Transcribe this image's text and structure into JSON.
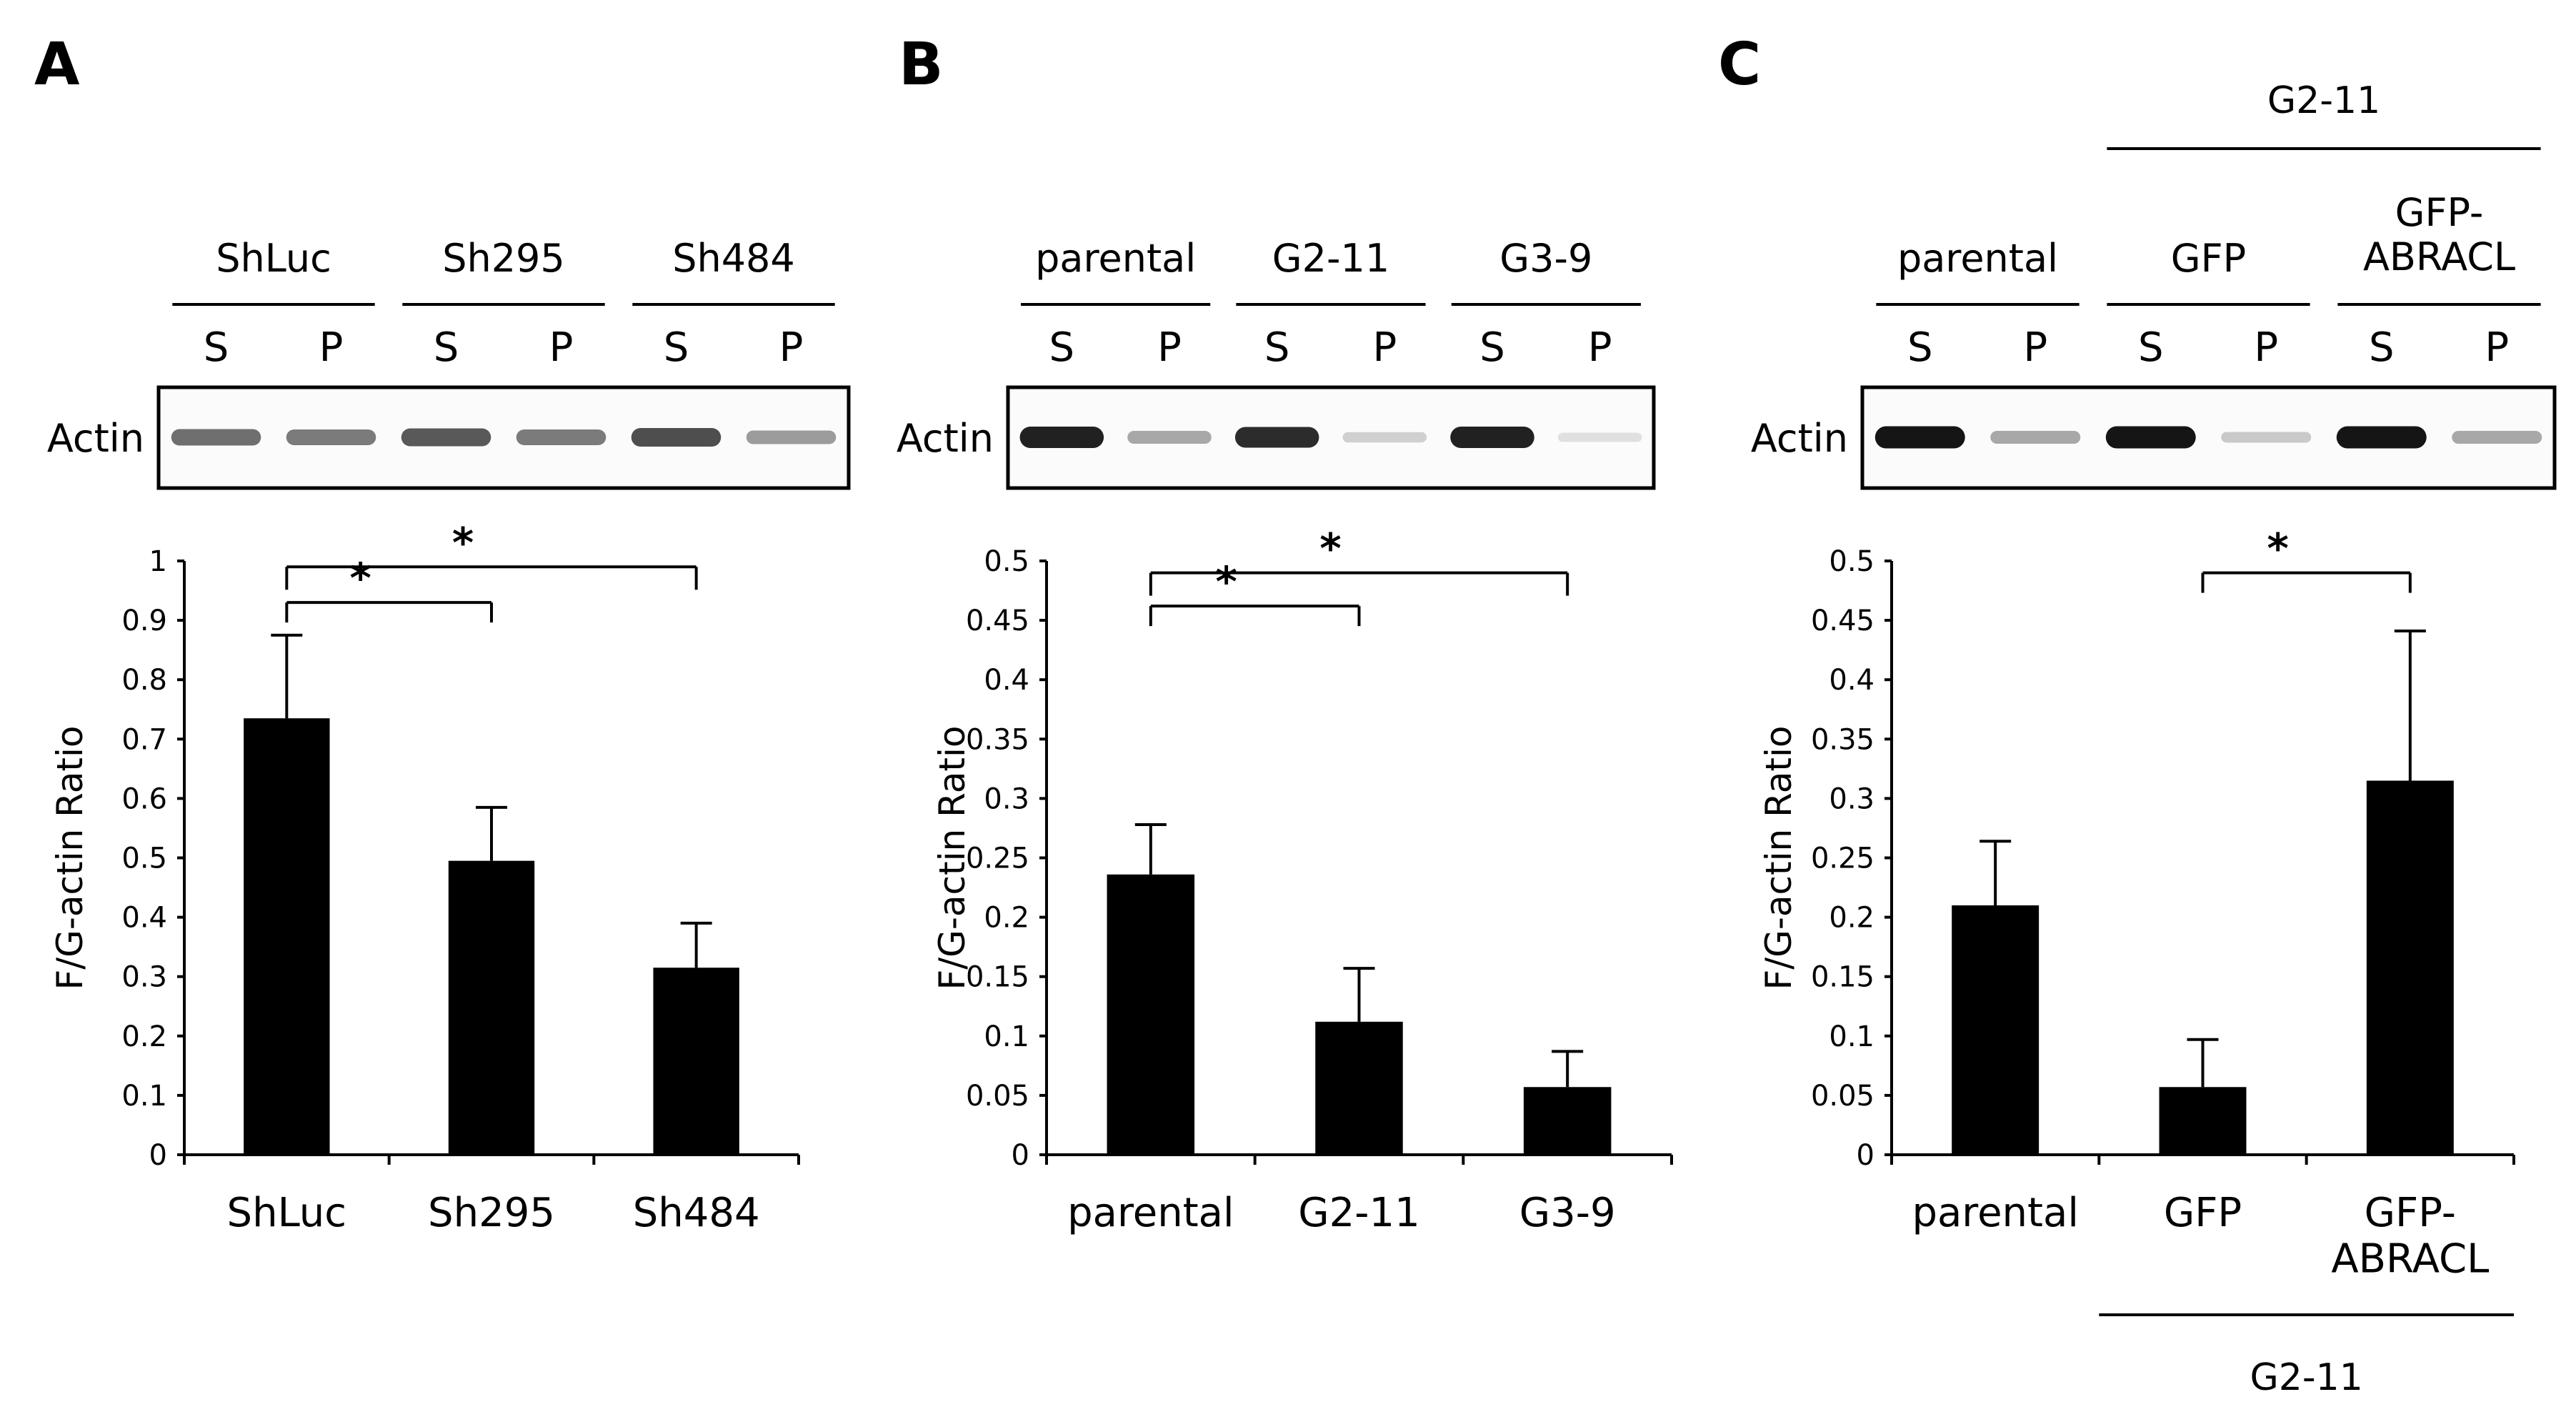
{
  "panels": [
    {
      "letter": "A",
      "top_group_label": "",
      "top_group_span": null,
      "blot_groups": [
        "ShLuc",
        "Sh295",
        "Sh484"
      ],
      "lane_labels": [
        "S",
        "P",
        "S",
        "P",
        "S",
        "P"
      ],
      "blot_row_label": "Actin",
      "band_intensity": [
        0.55,
        0.5,
        0.65,
        0.5,
        0.7,
        0.35
      ],
      "bottom_group_label": "",
      "bottom_group_span": null
    },
    {
      "letter": "B",
      "top_group_label": "",
      "top_group_span": null,
      "blot_groups": [
        "parental",
        "G2-11",
        "G3-9"
      ],
      "lane_labels": [
        "S",
        "P",
        "S",
        "P",
        "S",
        "P"
      ],
      "blot_row_label": "Actin",
      "band_intensity": [
        0.9,
        0.3,
        0.85,
        0.12,
        0.9,
        0.05
      ],
      "bottom_group_label": "",
      "bottom_group_span": null
    },
    {
      "letter": "C",
      "top_group_label": "G2-11",
      "top_group_span": [
        1,
        2
      ],
      "blot_groups": [
        "parental",
        "GFP",
        "GFP-\nABRACL"
      ],
      "lane_labels": [
        "S",
        "P",
        "S",
        "P",
        "S",
        "P"
      ],
      "blot_row_label": "Actin",
      "band_intensity": [
        0.95,
        0.3,
        0.95,
        0.15,
        0.95,
        0.3
      ],
      "bottom_group_label": "G2-11",
      "bottom_group_span": [
        1,
        2
      ]
    }
  ],
  "chart_data": [
    {
      "type": "bar",
      "categories": [
        "ShLuc",
        "Sh295",
        "Sh484"
      ],
      "values": [
        0.735,
        0.495,
        0.315
      ],
      "errors": [
        0.14,
        0.09,
        0.075
      ],
      "ylabel": "F/G-actin Ratio",
      "ylim": [
        0,
        1
      ],
      "yticks": [
        0,
        0.1,
        0.2,
        0.3,
        0.4,
        0.5,
        0.6,
        0.7,
        0.8,
        0.9,
        1
      ],
      "ytick_labels": [
        "0",
        "0.1",
        "0.2",
        "0.3",
        "0.4",
        "0.5",
        "0.6",
        "0.7",
        "0.8",
        "0.9",
        "1"
      ],
      "grid": false,
      "color": "#000000",
      "significance": [
        {
          "from": 0,
          "to": 1,
          "y": 0.93,
          "label": "*"
        },
        {
          "from": 0,
          "to": 2,
          "y": 0.99,
          "label": "*"
        }
      ]
    },
    {
      "type": "bar",
      "categories": [
        "parental",
        "G2-11",
        "G3-9"
      ],
      "values": [
        0.236,
        0.112,
        0.057
      ],
      "errors": [
        0.042,
        0.045,
        0.03
      ],
      "ylabel": "F/G-actin Ratio",
      "ylim": [
        0,
        0.5
      ],
      "yticks": [
        0,
        0.05,
        0.1,
        0.15,
        0.2,
        0.25,
        0.3,
        0.35,
        0.4,
        0.45,
        0.5
      ],
      "ytick_labels": [
        "0",
        "0.05",
        "0.1",
        "0.15",
        "0.2",
        "0.25",
        "0.3",
        "0.35",
        "0.4",
        "0.45",
        "0.5"
      ],
      "grid": false,
      "color": "#000000",
      "significance": [
        {
          "from": 0,
          "to": 1,
          "y": 0.462,
          "label": "*"
        },
        {
          "from": 0,
          "to": 2,
          "y": 0.49,
          "label": "*"
        }
      ]
    },
    {
      "type": "bar",
      "categories": [
        "parental",
        "GFP",
        "GFP-\nABRACL"
      ],
      "values": [
        0.21,
        0.057,
        0.315
      ],
      "errors": [
        0.054,
        0.04,
        0.126
      ],
      "ylabel": "F/G-actin Ratio",
      "ylim": [
        0,
        0.5
      ],
      "yticks": [
        0,
        0.05,
        0.1,
        0.15,
        0.2,
        0.25,
        0.3,
        0.35,
        0.4,
        0.45,
        0.5
      ],
      "ytick_labels": [
        "0",
        "0.05",
        "0.1",
        "0.15",
        "0.2",
        "0.25",
        "0.3",
        "0.35",
        "0.4",
        "0.45",
        "0.5"
      ],
      "grid": false,
      "color": "#000000",
      "significance": [
        {
          "from": 1,
          "to": 2,
          "y": 0.49,
          "label": "*"
        }
      ]
    }
  ]
}
